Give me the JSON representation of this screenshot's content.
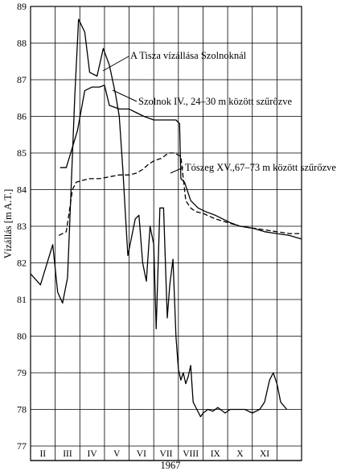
{
  "chart_data": {
    "type": "line",
    "title": "",
    "xlabel": "1967",
    "ylabel": "Vízállás [m A.T.]",
    "ylim": [
      77,
      89
    ],
    "yticks": [
      77,
      78,
      79,
      80,
      81,
      82,
      83,
      84,
      85,
      86,
      87,
      88,
      89
    ],
    "xlim": [
      0,
      11
    ],
    "months": [
      "II",
      "III",
      "IV",
      "V",
      "VI",
      "VII",
      "VIII",
      "IX",
      "X",
      "XI"
    ],
    "grid": true,
    "series": [
      {
        "name": "A Tisza vízállása Szolnoknál",
        "style": "solid",
        "x": [
          0.0,
          0.4,
          0.9,
          1.1,
          1.3,
          1.5,
          1.8,
          1.95,
          2.2,
          2.4,
          2.7,
          2.95,
          3.2,
          3.45,
          3.6,
          3.75,
          3.85,
          3.95,
          4.1,
          4.25,
          4.4,
          4.55,
          4.7,
          4.85,
          5.0,
          5.1,
          5.25,
          5.4,
          5.55,
          5.65,
          5.78,
          5.9,
          6.0,
          6.1,
          6.2,
          6.3,
          6.4,
          6.5,
          6.6,
          6.75,
          6.9,
          7.0,
          7.2,
          7.4,
          7.6,
          7.9,
          8.1,
          8.4,
          8.7,
          9.0,
          9.3,
          9.5,
          9.7,
          9.85,
          10.0,
          10.15,
          10.4
        ],
        "y": [
          81.7,
          81.4,
          82.5,
          81.2,
          80.9,
          81.6,
          86.6,
          88.65,
          88.3,
          87.2,
          87.1,
          87.85,
          87.4,
          86.6,
          86.0,
          84.5,
          83.3,
          82.2,
          82.7,
          83.2,
          83.3,
          82.0,
          81.5,
          83.0,
          82.5,
          80.2,
          83.5,
          83.5,
          80.5,
          81.4,
          82.1,
          80.0,
          79.1,
          78.8,
          79.0,
          78.7,
          78.9,
          79.2,
          78.2,
          78.0,
          77.8,
          77.9,
          78.0,
          77.95,
          78.05,
          77.9,
          78.0,
          78.0,
          78.0,
          77.9,
          78.0,
          78.2,
          78.8,
          79.0,
          78.7,
          78.2,
          78.0
        ]
      },
      {
        "name": "Szolnok IV., 24–30 m között szűrőzve",
        "style": "solid",
        "x": [
          1.2,
          1.45,
          1.9,
          2.2,
          2.5,
          2.8,
          3.0,
          3.2,
          3.6,
          4.0,
          4.3,
          4.6,
          5.0,
          5.5,
          5.9,
          6.05,
          6.1,
          6.25,
          6.5,
          6.8,
          7.1,
          7.5,
          7.8,
          8.1,
          8.5,
          9.0,
          9.5,
          10.0,
          10.5,
          11.0
        ],
        "y": [
          84.6,
          84.6,
          85.6,
          86.7,
          86.8,
          86.8,
          86.85,
          86.3,
          86.2,
          86.2,
          86.1,
          86.0,
          85.9,
          85.9,
          85.9,
          85.8,
          84.3,
          84.2,
          83.7,
          83.5,
          83.4,
          83.3,
          83.2,
          83.1,
          83.0,
          82.95,
          82.85,
          82.8,
          82.75,
          82.65
        ]
      },
      {
        "name": "Tószeg XV.,67–73 m között szűrőzve",
        "style": "dashed",
        "x": [
          1.15,
          1.3,
          1.45,
          1.55,
          1.7,
          1.85,
          2.1,
          2.4,
          2.8,
          3.2,
          3.6,
          4.0,
          4.3,
          4.55,
          4.8,
          5.05,
          5.3,
          5.6,
          5.85,
          6.1,
          6.3,
          6.5,
          6.7,
          7.0,
          7.5,
          8.0,
          8.5,
          9.0,
          9.5,
          10.0,
          10.5,
          11.0
        ],
        "y": [
          82.75,
          82.8,
          82.85,
          83.3,
          84.0,
          84.2,
          84.25,
          84.3,
          84.3,
          84.35,
          84.4,
          84.4,
          84.45,
          84.55,
          84.7,
          84.8,
          84.85,
          85.0,
          85.0,
          84.9,
          83.7,
          83.5,
          83.4,
          83.35,
          83.2,
          83.1,
          83.0,
          82.95,
          82.9,
          82.85,
          82.8,
          82.8
        ]
      }
    ],
    "annotations": [
      {
        "text": "A Tisza vízállása Szolnoknál",
        "series": 0
      },
      {
        "text": "Szolnok IV., 24–30 m között szűrőzve",
        "series": 1
      },
      {
        "text": "Tószeg XV.,67–73 m között szűrőzve",
        "series": 2
      }
    ]
  }
}
